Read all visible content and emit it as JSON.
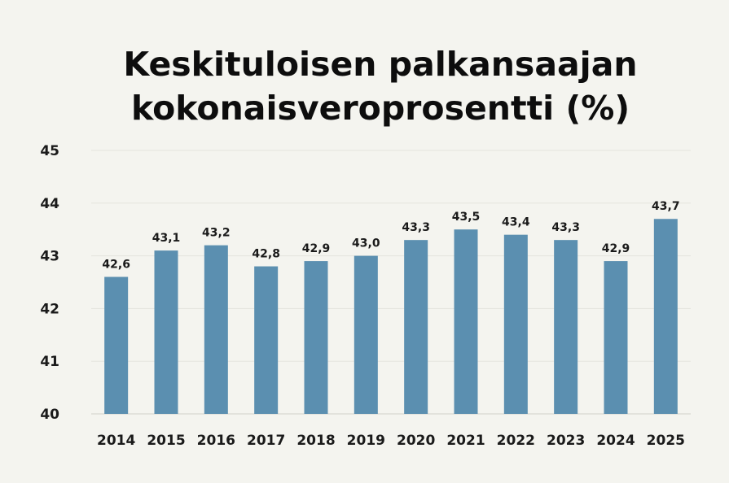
{
  "chart_data": {
    "type": "bar",
    "title": [
      "Keskituloisen palkansaajan",
      "kokonaisveroprosentti (%)"
    ],
    "categories": [
      "2014",
      "2015",
      "2016",
      "2017",
      "2018",
      "2019",
      "2020",
      "2021",
      "2022",
      "2023",
      "2024",
      "2025"
    ],
    "values": [
      42.6,
      43.1,
      43.2,
      42.8,
      42.9,
      43.0,
      43.3,
      43.5,
      43.4,
      43.3,
      42.9,
      43.7
    ],
    "data_labels": [
      "42,6",
      "43,1",
      "43,2",
      "42,8",
      "42,9",
      "43,0",
      "43,3",
      "43,5",
      "43,4",
      "43,3",
      "42,9",
      "43,7"
    ],
    "y_ticks": [
      "40",
      "41",
      "42",
      "43",
      "44",
      "45"
    ],
    "xlabel": "",
    "ylabel": "",
    "ylim": [
      40,
      45
    ],
    "grid": true,
    "bar_color": "#5b8fb0"
  }
}
